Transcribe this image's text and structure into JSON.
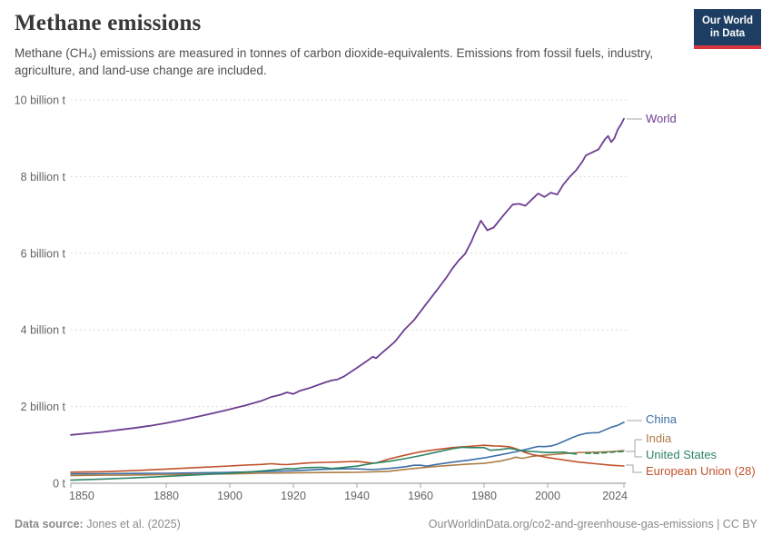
{
  "header": {
    "title": "Methane emissions",
    "subtitle": "Methane (CH₄) emissions are measured in tonnes of carbon dioxide-equivalents. Emissions from fossil fuels, industry, agriculture, and land-use change are included.",
    "logo_line1": "Our World",
    "logo_line2": "in Data"
  },
  "footer": {
    "source_label": "Data source:",
    "source_value": " Jones et al. (2025)",
    "license": "OurWorldinData.org/co2-and-greenhouse-gas-emissions | CC BY"
  },
  "colors": {
    "world": "#6d3e91",
    "china": "#3c6ea6",
    "india": "#ad7d45",
    "united_states": "#2c8465",
    "european_union": "#c0512b",
    "grid": "#dcdcdc",
    "axis": "#a5a5a5",
    "tick_text": "#636363",
    "connector": "#a6a6a6",
    "logo_bg": "#1d3d63",
    "logo_stripe": "#d8353f"
  },
  "chart_data": {
    "type": "line",
    "title": "Methane emissions",
    "unit": "billion tonnes of CO₂-equivalents",
    "x_min": 1850,
    "x_max": 2024,
    "y_min": 0,
    "y_max": 10,
    "grid": true,
    "legend_position": "right-end-labels",
    "x_ticks": [
      1850,
      1880,
      1900,
      1920,
      1940,
      1960,
      1980,
      2000,
      2024
    ],
    "y_ticks": [
      {
        "value": 0,
        "label": "0 t"
      },
      {
        "value": 2,
        "label": "2 billion t"
      },
      {
        "value": 4,
        "label": "4 billion t"
      },
      {
        "value": 6,
        "label": "6 billion t"
      },
      {
        "value": 8,
        "label": "8 billion t"
      },
      {
        "value": 10,
        "label": "10 billion t"
      }
    ],
    "series": [
      {
        "name": "World",
        "color": "#6d3e91",
        "width": 1.8,
        "points": [
          [
            1850,
            1.26
          ],
          [
            1855,
            1.3
          ],
          [
            1860,
            1.34
          ],
          [
            1865,
            1.39
          ],
          [
            1870,
            1.44
          ],
          [
            1875,
            1.5
          ],
          [
            1880,
            1.57
          ],
          [
            1885,
            1.65
          ],
          [
            1890,
            1.74
          ],
          [
            1895,
            1.83
          ],
          [
            1900,
            1.93
          ],
          [
            1905,
            2.03
          ],
          [
            1910,
            2.15
          ],
          [
            1913,
            2.25
          ],
          [
            1916,
            2.31
          ],
          [
            1918,
            2.37
          ],
          [
            1920,
            2.33
          ],
          [
            1922,
            2.41
          ],
          [
            1925,
            2.48
          ],
          [
            1928,
            2.57
          ],
          [
            1930,
            2.63
          ],
          [
            1932,
            2.68
          ],
          [
            1934,
            2.71
          ],
          [
            1936,
            2.79
          ],
          [
            1938,
            2.9
          ],
          [
            1940,
            3.01
          ],
          [
            1943,
            3.18
          ],
          [
            1945,
            3.3
          ],
          [
            1946,
            3.26
          ],
          [
            1948,
            3.41
          ],
          [
            1950,
            3.55
          ],
          [
            1952,
            3.7
          ],
          [
            1955,
            4.01
          ],
          [
            1958,
            4.26
          ],
          [
            1960,
            4.48
          ],
          [
            1962,
            4.7
          ],
          [
            1965,
            5.02
          ],
          [
            1968,
            5.35
          ],
          [
            1970,
            5.6
          ],
          [
            1972,
            5.81
          ],
          [
            1974,
            5.98
          ],
          [
            1976,
            6.3
          ],
          [
            1977,
            6.5
          ],
          [
            1979,
            6.85
          ],
          [
            1981,
            6.6
          ],
          [
            1983,
            6.67
          ],
          [
            1986,
            6.98
          ],
          [
            1989,
            7.27
          ],
          [
            1991,
            7.29
          ],
          [
            1993,
            7.24
          ],
          [
            1995,
            7.4
          ],
          [
            1997,
            7.56
          ],
          [
            1999,
            7.47
          ],
          [
            2001,
            7.58
          ],
          [
            2003,
            7.53
          ],
          [
            2005,
            7.8
          ],
          [
            2007,
            8.0
          ],
          [
            2009,
            8.17
          ],
          [
            2011,
            8.4
          ],
          [
            2012,
            8.55
          ],
          [
            2014,
            8.63
          ],
          [
            2016,
            8.71
          ],
          [
            2018,
            8.97
          ],
          [
            2019,
            9.06
          ],
          [
            2020,
            8.9
          ],
          [
            2021,
            9.0
          ],
          [
            2022,
            9.22
          ],
          [
            2023,
            9.35
          ],
          [
            2024,
            9.51
          ]
        ]
      },
      {
        "name": "China",
        "color": "#3c6ea6",
        "width": 1.6,
        "points": [
          [
            1850,
            0.245
          ],
          [
            1860,
            0.25
          ],
          [
            1870,
            0.255
          ],
          [
            1880,
            0.26
          ],
          [
            1890,
            0.27
          ],
          [
            1900,
            0.285
          ],
          [
            1910,
            0.3
          ],
          [
            1915,
            0.315
          ],
          [
            1920,
            0.325
          ],
          [
            1925,
            0.345
          ],
          [
            1930,
            0.365
          ],
          [
            1935,
            0.375
          ],
          [
            1940,
            0.375
          ],
          [
            1945,
            0.355
          ],
          [
            1950,
            0.385
          ],
          [
            1955,
            0.43
          ],
          [
            1958,
            0.47
          ],
          [
            1960,
            0.47
          ],
          [
            1962,
            0.445
          ],
          [
            1965,
            0.49
          ],
          [
            1970,
            0.55
          ],
          [
            1975,
            0.6
          ],
          [
            1980,
            0.66
          ],
          [
            1985,
            0.74
          ],
          [
            1990,
            0.82
          ],
          [
            1993,
            0.88
          ],
          [
            1995,
            0.92
          ],
          [
            1997,
            0.96
          ],
          [
            1999,
            0.955
          ],
          [
            2001,
            0.97
          ],
          [
            2003,
            1.02
          ],
          [
            2005,
            1.09
          ],
          [
            2008,
            1.2
          ],
          [
            2010,
            1.26
          ],
          [
            2012,
            1.3
          ],
          [
            2014,
            1.315
          ],
          [
            2016,
            1.32
          ],
          [
            2018,
            1.39
          ],
          [
            2020,
            1.46
          ],
          [
            2022,
            1.51
          ],
          [
            2024,
            1.59
          ]
        ]
      },
      {
        "name": "India",
        "color": "#ad7d45",
        "width": 1.6,
        "points": [
          [
            1850,
            0.2
          ],
          [
            1860,
            0.21
          ],
          [
            1870,
            0.215
          ],
          [
            1880,
            0.225
          ],
          [
            1890,
            0.235
          ],
          [
            1900,
            0.245
          ],
          [
            1910,
            0.26
          ],
          [
            1920,
            0.27
          ],
          [
            1930,
            0.28
          ],
          [
            1940,
            0.285
          ],
          [
            1950,
            0.31
          ],
          [
            1955,
            0.36
          ],
          [
            1960,
            0.4
          ],
          [
            1965,
            0.44
          ],
          [
            1970,
            0.47
          ],
          [
            1975,
            0.5
          ],
          [
            1980,
            0.52
          ],
          [
            1985,
            0.575
          ],
          [
            1988,
            0.63
          ],
          [
            1990,
            0.68
          ],
          [
            1992,
            0.65
          ],
          [
            1995,
            0.7
          ],
          [
            2000,
            0.74
          ],
          [
            2005,
            0.77
          ],
          [
            2010,
            0.8
          ],
          [
            2015,
            0.81
          ],
          [
            2020,
            0.825
          ],
          [
            2024,
            0.85
          ]
        ]
      },
      {
        "name": "European Union (28)",
        "color": "#c0512b",
        "width": 1.6,
        "points": [
          [
            1850,
            0.29
          ],
          [
            1860,
            0.3
          ],
          [
            1870,
            0.33
          ],
          [
            1880,
            0.37
          ],
          [
            1890,
            0.41
          ],
          [
            1900,
            0.45
          ],
          [
            1905,
            0.475
          ],
          [
            1910,
            0.49
          ],
          [
            1913,
            0.51
          ],
          [
            1916,
            0.49
          ],
          [
            1918,
            0.485
          ],
          [
            1920,
            0.5
          ],
          [
            1925,
            0.53
          ],
          [
            1930,
            0.545
          ],
          [
            1935,
            0.555
          ],
          [
            1940,
            0.57
          ],
          [
            1944,
            0.53
          ],
          [
            1946,
            0.525
          ],
          [
            1950,
            0.63
          ],
          [
            1955,
            0.73
          ],
          [
            1960,
            0.82
          ],
          [
            1965,
            0.88
          ],
          [
            1970,
            0.93
          ],
          [
            1975,
            0.96
          ],
          [
            1980,
            0.99
          ],
          [
            1983,
            0.975
          ],
          [
            1985,
            0.97
          ],
          [
            1988,
            0.95
          ],
          [
            1990,
            0.9
          ],
          [
            1993,
            0.8
          ],
          [
            1995,
            0.75
          ],
          [
            2000,
            0.67
          ],
          [
            2005,
            0.61
          ],
          [
            2010,
            0.55
          ],
          [
            2015,
            0.51
          ],
          [
            2020,
            0.47
          ],
          [
            2024,
            0.45
          ]
        ]
      },
      {
        "name": "United States",
        "color": "#2c8465",
        "width": 1.6,
        "dash_from": 2010,
        "points": [
          [
            1850,
            0.08
          ],
          [
            1860,
            0.11
          ],
          [
            1870,
            0.14
          ],
          [
            1880,
            0.18
          ],
          [
            1890,
            0.22
          ],
          [
            1900,
            0.26
          ],
          [
            1905,
            0.29
          ],
          [
            1910,
            0.32
          ],
          [
            1915,
            0.355
          ],
          [
            1918,
            0.385
          ],
          [
            1920,
            0.375
          ],
          [
            1923,
            0.4
          ],
          [
            1926,
            0.41
          ],
          [
            1929,
            0.415
          ],
          [
            1932,
            0.385
          ],
          [
            1935,
            0.405
          ],
          [
            1940,
            0.445
          ],
          [
            1945,
            0.52
          ],
          [
            1950,
            0.57
          ],
          [
            1955,
            0.64
          ],
          [
            1960,
            0.72
          ],
          [
            1965,
            0.81
          ],
          [
            1970,
            0.9
          ],
          [
            1973,
            0.935
          ],
          [
            1976,
            0.93
          ],
          [
            1980,
            0.93
          ],
          [
            1982,
            0.86
          ],
          [
            1985,
            0.88
          ],
          [
            1988,
            0.91
          ],
          [
            1990,
            0.88
          ],
          [
            1993,
            0.84
          ],
          [
            1995,
            0.83
          ],
          [
            2000,
            0.8
          ],
          [
            2005,
            0.81
          ],
          [
            2009,
            0.76
          ],
          [
            2012,
            0.78
          ],
          [
            2016,
            0.78
          ],
          [
            2020,
            0.81
          ],
          [
            2024,
            0.83
          ]
        ]
      }
    ]
  }
}
